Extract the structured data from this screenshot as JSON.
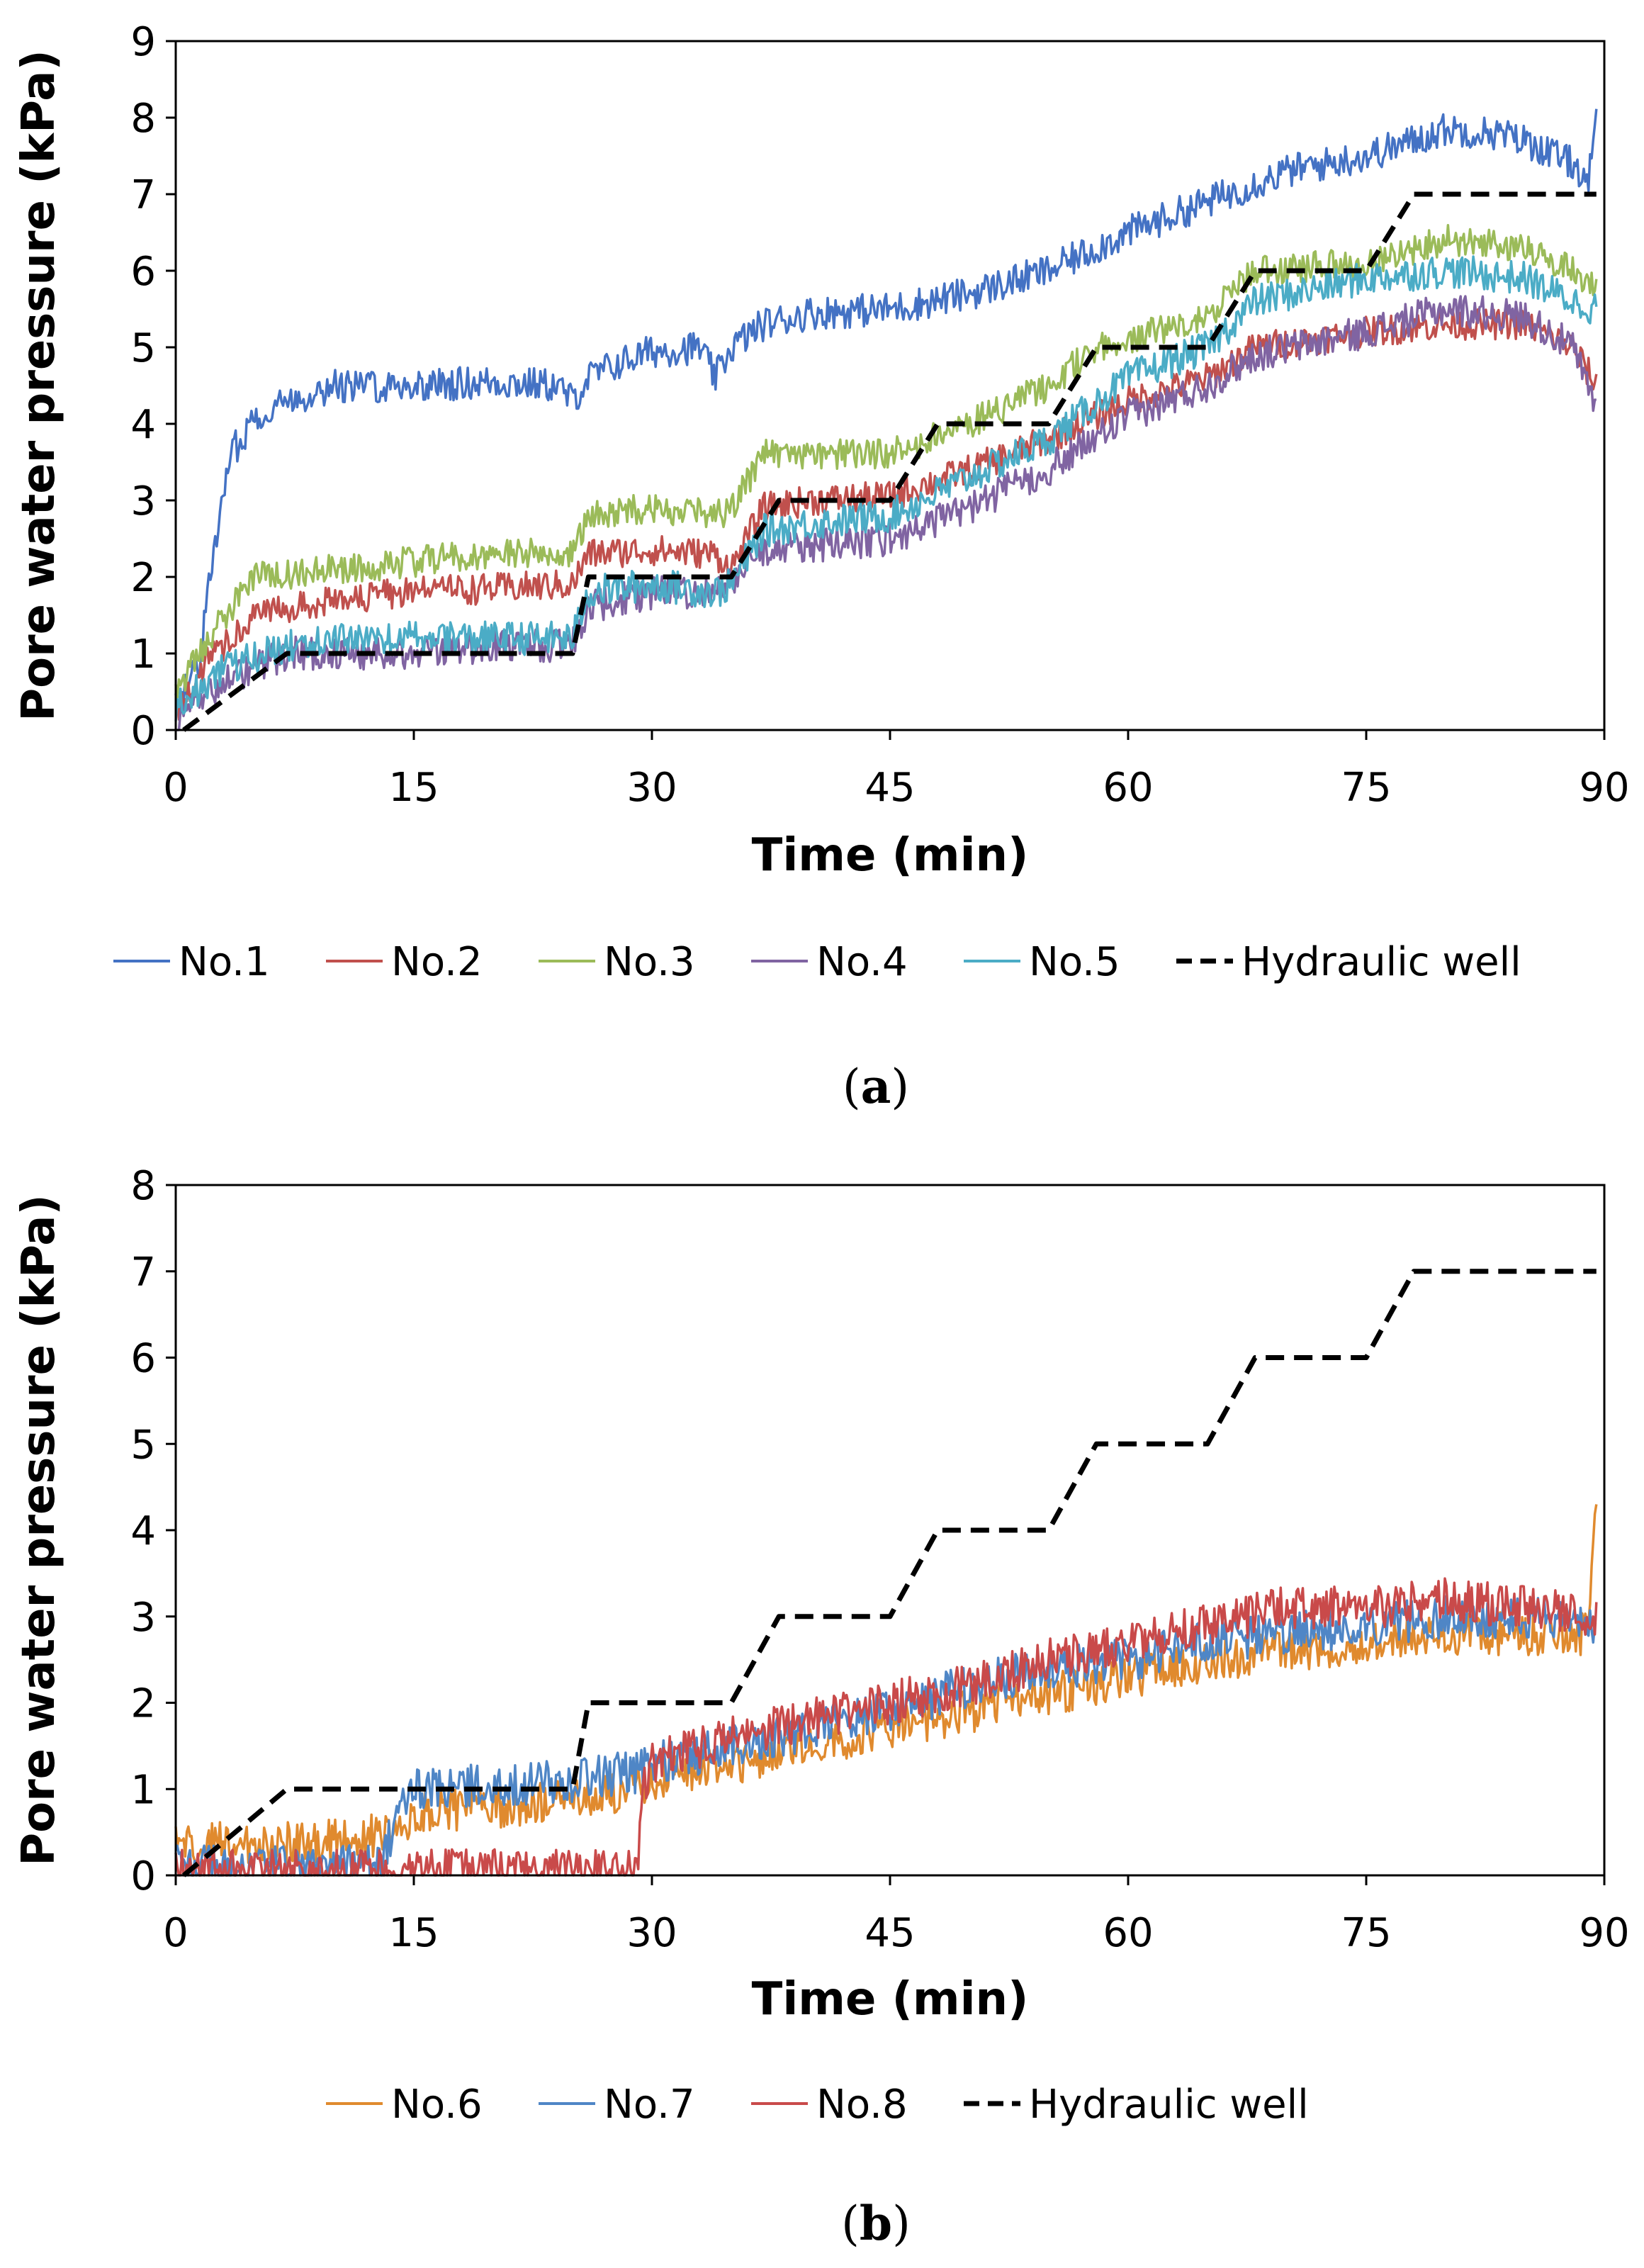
{
  "chart_data": [
    {
      "type": "line",
      "panel": "a",
      "caption": {
        "open": "(",
        "letter": "a",
        "close": ")"
      },
      "xlabel": "Time (min)",
      "ylabel": "Pore water pressure (kPa)",
      "xlim": [
        0,
        90
      ],
      "ylim": [
        0,
        9
      ],
      "xticks": [
        0,
        15,
        30,
        45,
        60,
        75,
        90
      ],
      "yticks": [
        0,
        1,
        2,
        3,
        4,
        5,
        6,
        7,
        8,
        9
      ],
      "grid": false,
      "legend_position": "bottom",
      "series": [
        {
          "name": "No.1",
          "color": "#4472C4",
          "noise": 0.22,
          "style": "solid",
          "x": [
            0,
            1.5,
            2.5,
            3.5,
            5,
            7,
            10,
            15,
            20,
            24,
            25,
            26,
            28,
            30,
            33,
            34,
            35,
            37,
            40,
            45,
            50,
            55,
            60,
            65,
            70,
            75,
            78,
            80,
            83,
            85,
            88,
            89,
            89.5
          ],
          "y": [
            0.3,
            0.9,
            2.5,
            3.6,
            4.1,
            4.3,
            4.5,
            4.5,
            4.55,
            4.5,
            4.3,
            4.6,
            4.8,
            4.95,
            5.0,
            4.6,
            5.0,
            5.3,
            5.45,
            5.5,
            5.7,
            6.0,
            6.5,
            6.9,
            7.3,
            7.5,
            7.7,
            7.85,
            7.8,
            7.7,
            7.4,
            7.2,
            7.9
          ]
        },
        {
          "name": "No.2",
          "color": "#C0504D",
          "noise": 0.2,
          "style": "solid",
          "x": [
            0,
            2,
            5,
            10,
            15,
            20,
            25,
            26,
            30,
            34,
            35,
            37,
            40,
            45,
            50,
            55,
            60,
            65,
            68,
            75,
            80,
            85,
            88,
            89.5
          ],
          "y": [
            0.2,
            0.9,
            1.5,
            1.7,
            1.8,
            1.85,
            1.9,
            2.3,
            2.35,
            2.3,
            2.1,
            2.9,
            3.0,
            3.05,
            3.4,
            3.8,
            4.3,
            4.6,
            5.0,
            5.2,
            5.3,
            5.3,
            5.0,
            4.5
          ]
        },
        {
          "name": "No.3",
          "color": "#9BBB59",
          "noise": 0.2,
          "style": "solid",
          "x": [
            0,
            2,
            5,
            10,
            15,
            20,
            25,
            26,
            30,
            34,
            35,
            37,
            40,
            45,
            50,
            55,
            58,
            65,
            68,
            75,
            80,
            85,
            88,
            89.5
          ],
          "y": [
            0.4,
            1.2,
            2.0,
            2.1,
            2.2,
            2.3,
            2.3,
            2.8,
            2.9,
            2.8,
            2.9,
            3.6,
            3.6,
            3.6,
            4.0,
            4.5,
            5.0,
            5.4,
            6.0,
            6.1,
            6.4,
            6.3,
            6.0,
            5.8
          ]
        },
        {
          "name": "No.4",
          "color": "#8064A2",
          "noise": 0.22,
          "style": "solid",
          "x": [
            0,
            3,
            7,
            10,
            15,
            20,
            25,
            26,
            30,
            34,
            35,
            37,
            40,
            45,
            50,
            55,
            60,
            65,
            68,
            75,
            80,
            85,
            88,
            89.5
          ],
          "y": [
            0.1,
            0.6,
            1.0,
            1.0,
            1.0,
            1.1,
            1.1,
            1.6,
            1.8,
            1.8,
            1.9,
            2.3,
            2.4,
            2.5,
            2.9,
            3.4,
            4.1,
            4.5,
            4.9,
            5.2,
            5.5,
            5.4,
            5.0,
            4.2
          ]
        },
        {
          "name": "No.5",
          "color": "#4BACC6",
          "noise": 0.22,
          "style": "solid",
          "x": [
            0,
            3,
            7,
            10,
            15,
            20,
            25,
            26,
            30,
            34,
            35,
            37,
            40,
            45,
            50,
            55,
            60,
            65,
            68,
            75,
            80,
            85,
            88,
            89.5
          ],
          "y": [
            0.3,
            0.8,
            1.1,
            1.2,
            1.2,
            1.2,
            1.2,
            1.8,
            1.9,
            1.8,
            1.9,
            2.6,
            2.7,
            2.8,
            3.3,
            3.8,
            4.6,
            5.0,
            5.6,
            5.9,
            6.0,
            5.9,
            5.6,
            5.5
          ]
        },
        {
          "name": "Hydraulic well",
          "color": "#000000",
          "noise": 0,
          "style": "dashed",
          "x": [
            0.5,
            7,
            25,
            26,
            35,
            38,
            45,
            48,
            55,
            58,
            65,
            68,
            75,
            78,
            89.5
          ],
          "y": [
            0,
            1,
            1,
            2,
            2,
            3,
            3,
            4,
            4,
            5,
            5,
            6,
            6,
            7,
            7
          ]
        }
      ]
    },
    {
      "type": "line",
      "panel": "b",
      "caption": {
        "open": "(",
        "letter": "b",
        "close": ")"
      },
      "xlabel": "Time (min)",
      "ylabel": "Pore water pressure (kPa)",
      "xlim": [
        0,
        90
      ],
      "ylim": [
        0,
        8
      ],
      "xticks": [
        0,
        15,
        30,
        45,
        60,
        75,
        90
      ],
      "yticks": [
        0,
        1,
        2,
        3,
        4,
        5,
        6,
        7,
        8
      ],
      "grid": false,
      "legend_position": "bottom",
      "series": [
        {
          "name": "No.6",
          "color": "#E08A2E",
          "noise": 0.25,
          "style": "solid",
          "x": [
            0,
            5,
            10,
            14,
            15,
            20,
            25,
            27,
            30,
            35,
            40,
            45,
            50,
            55,
            60,
            65,
            70,
            75,
            80,
            85,
            89,
            89.5
          ],
          "y": [
            0.4,
            0.35,
            0.4,
            0.5,
            0.7,
            0.8,
            0.85,
            0.9,
            1.1,
            1.3,
            1.5,
            1.7,
            1.9,
            2.1,
            2.3,
            2.5,
            2.6,
            2.7,
            2.8,
            2.8,
            2.8,
            4.3
          ]
        },
        {
          "name": "No.7",
          "color": "#4F86C6",
          "noise": 0.25,
          "style": "solid",
          "x": [
            0,
            5,
            10,
            13,
            14,
            15,
            20,
            25,
            29,
            30,
            35,
            40,
            45,
            50,
            55,
            60,
            65,
            70,
            75,
            80,
            85,
            89.5
          ],
          "y": [
            0.1,
            0.1,
            0.1,
            0.1,
            0.8,
            1.0,
            1.05,
            1.1,
            1.2,
            1.3,
            1.5,
            1.7,
            1.9,
            2.2,
            2.4,
            2.5,
            2.7,
            2.8,
            2.9,
            3.0,
            3.0,
            2.9
          ]
        },
        {
          "name": "No.8",
          "color": "#C94A4A",
          "noise": 0.25,
          "style": "solid",
          "x": [
            0,
            10,
            20,
            29,
            29.5,
            30,
            35,
            40,
            45,
            50,
            55,
            60,
            65,
            70,
            75,
            80,
            85,
            89.5
          ],
          "y": [
            0.05,
            0.05,
            0.05,
            0.05,
            1.0,
            1.3,
            1.6,
            1.8,
            2.0,
            2.2,
            2.5,
            2.7,
            2.9,
            3.1,
            3.1,
            3.2,
            3.1,
            3.0
          ]
        },
        {
          "name": "Hydraulic well",
          "color": "#000000",
          "noise": 0,
          "style": "dashed",
          "x": [
            0.5,
            7,
            25,
            26,
            35,
            38,
            45,
            48,
            55,
            58,
            65,
            68,
            75,
            78,
            89.5
          ],
          "y": [
            0,
            1,
            1,
            2,
            2,
            3,
            3,
            4,
            4,
            5,
            5,
            6,
            6,
            7,
            7
          ]
        }
      ]
    }
  ]
}
